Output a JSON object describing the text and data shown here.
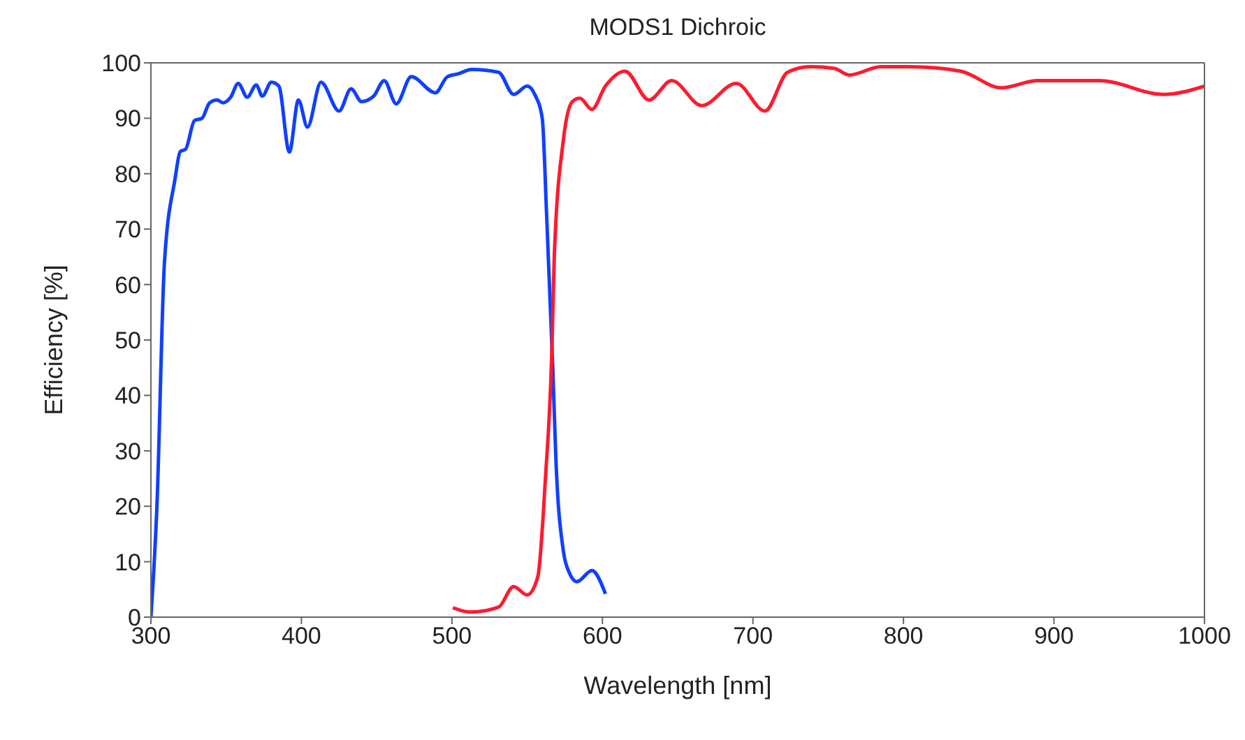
{
  "chart_data": {
    "type": "line",
    "title": "MODS1 Dichroic",
    "xlabel": "Wavelength [nm]",
    "ylabel": "Efficiency [%]",
    "xlim": [
      300,
      1000
    ],
    "ylim": [
      0,
      100
    ],
    "xticks": [
      300,
      400,
      500,
      600,
      700,
      800,
      900,
      1000
    ],
    "yticks": [
      0,
      10,
      20,
      30,
      40,
      50,
      60,
      70,
      80,
      90,
      100
    ],
    "grid": false,
    "legend": false,
    "marker": "none",
    "line_style": "solid",
    "series": [
      {
        "color": "#1040ff",
        "x": [
          300,
          304,
          309,
          316,
          319.5,
          323,
          329,
          334,
          339,
          344,
          348,
          353,
          358,
          364,
          370,
          374,
          380,
          385,
          392,
          398,
          404,
          413,
          425,
          433,
          440,
          448,
          455,
          463,
          473,
          489,
          497,
          504,
          513,
          531,
          541,
          550,
          555,
          560,
          563,
          567,
          569,
          574,
          578,
          583,
          593,
          602
        ],
        "values": [
          0,
          20,
          64,
          79,
          84,
          84.4,
          89.6,
          90,
          92.8,
          93.3,
          92.8,
          93.8,
          96.3,
          93.8,
          96,
          94,
          96.5,
          95.8,
          83.9,
          93.3,
          88.4,
          96.5,
          91.3,
          95.3,
          93,
          94,
          96.8,
          92.6,
          97.5,
          94.6,
          97.5,
          98,
          98.8,
          98.3,
          94.3,
          95.8,
          94.3,
          90,
          72,
          45,
          29,
          12,
          8,
          6.4,
          8.4,
          4.2
        ]
      },
      {
        "color": "#ff1a2e",
        "x": [
          500.6,
          512.6,
          531,
          541,
          550,
          557,
          562,
          566.5,
          568,
          574,
          580,
          585,
          593,
          602,
          615,
          631,
          646,
          666,
          689,
          708,
          723,
          738,
          754,
          764,
          785,
          803,
          838,
          865,
          889,
          930,
          973,
          1000
        ],
        "values": [
          1.7,
          0.9,
          1.8,
          5.5,
          4,
          7.2,
          24.5,
          49,
          65,
          86,
          93,
          93.6,
          91.6,
          95.8,
          98.5,
          93.3,
          96.8,
          92.3,
          96.3,
          91.3,
          98.3,
          99.3,
          99,
          97.8,
          99.3,
          99.3,
          98.5,
          95.5,
          96.8,
          96.8,
          94.3,
          95.8
        ]
      }
    ]
  }
}
